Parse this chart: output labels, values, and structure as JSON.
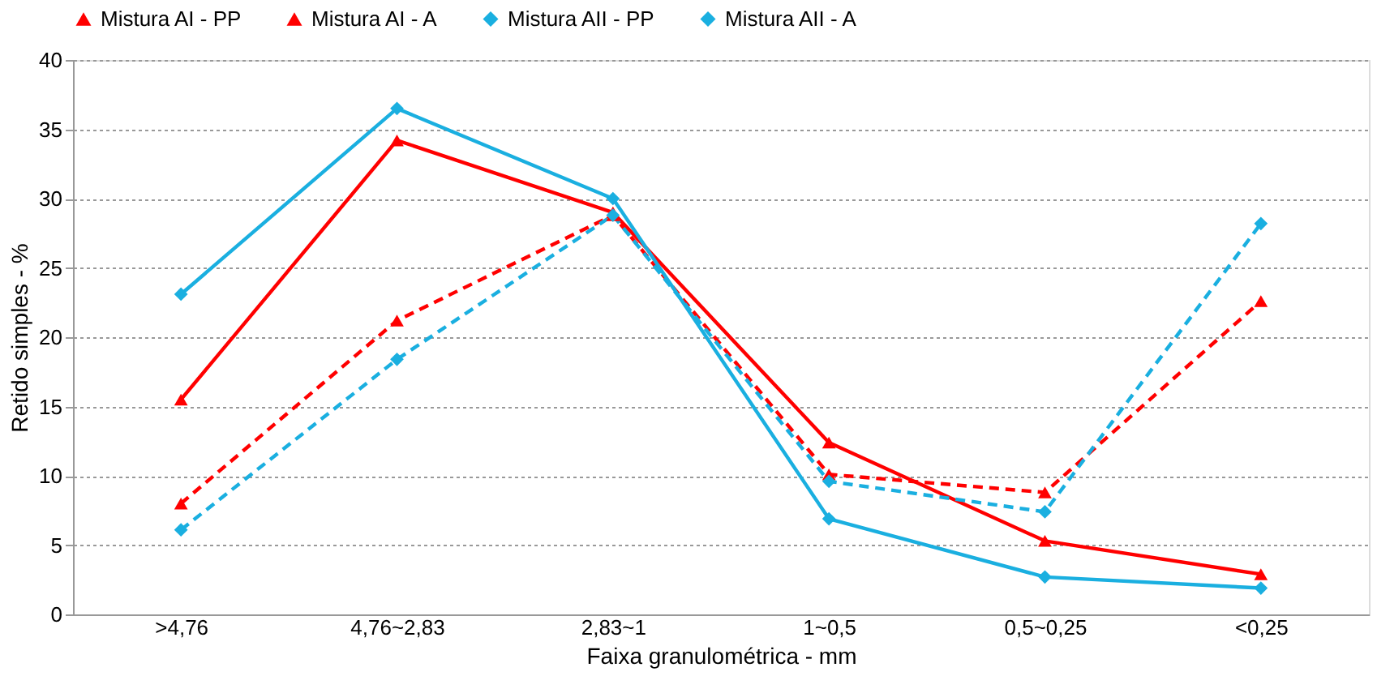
{
  "chart_data": {
    "type": "line",
    "xlabel": "Faixa granulométrica - mm",
    "ylabel": "Retido simples - %",
    "categories": [
      ">4,76",
      "4,76~2,83",
      "2,83~1",
      "1~0,5",
      "0,5~0,25",
      "<0,25"
    ],
    "series": [
      {
        "name": "Mistura AI - PP",
        "color": "#ff0000",
        "marker": "triangle",
        "line_style": "dashed",
        "values": [
          8.0,
          21.2,
          28.8,
          10.1,
          8.8,
          22.6
        ]
      },
      {
        "name": "Mistura AI - A",
        "color": "#ff0000",
        "marker": "triangle",
        "line_style": "solid",
        "values": [
          15.5,
          34.2,
          29.0,
          12.4,
          5.3,
          2.9
        ]
      },
      {
        "name": "Mistura AII - PP",
        "color": "#1aafe0",
        "marker": "diamond",
        "line_style": "dashed",
        "values": [
          6.1,
          18.4,
          28.8,
          9.6,
          7.4,
          28.2
        ]
      },
      {
        "name": "Mistura AII - A",
        "color": "#1aafe0",
        "marker": "diamond",
        "line_style": "solid",
        "values": [
          23.1,
          36.5,
          30.0,
          6.9,
          2.7,
          1.9
        ]
      }
    ],
    "ylim": [
      0,
      40
    ],
    "yticks": [
      0,
      5,
      10,
      15,
      20,
      25,
      30,
      35,
      40
    ],
    "grid": "y",
    "legend": "top"
  }
}
